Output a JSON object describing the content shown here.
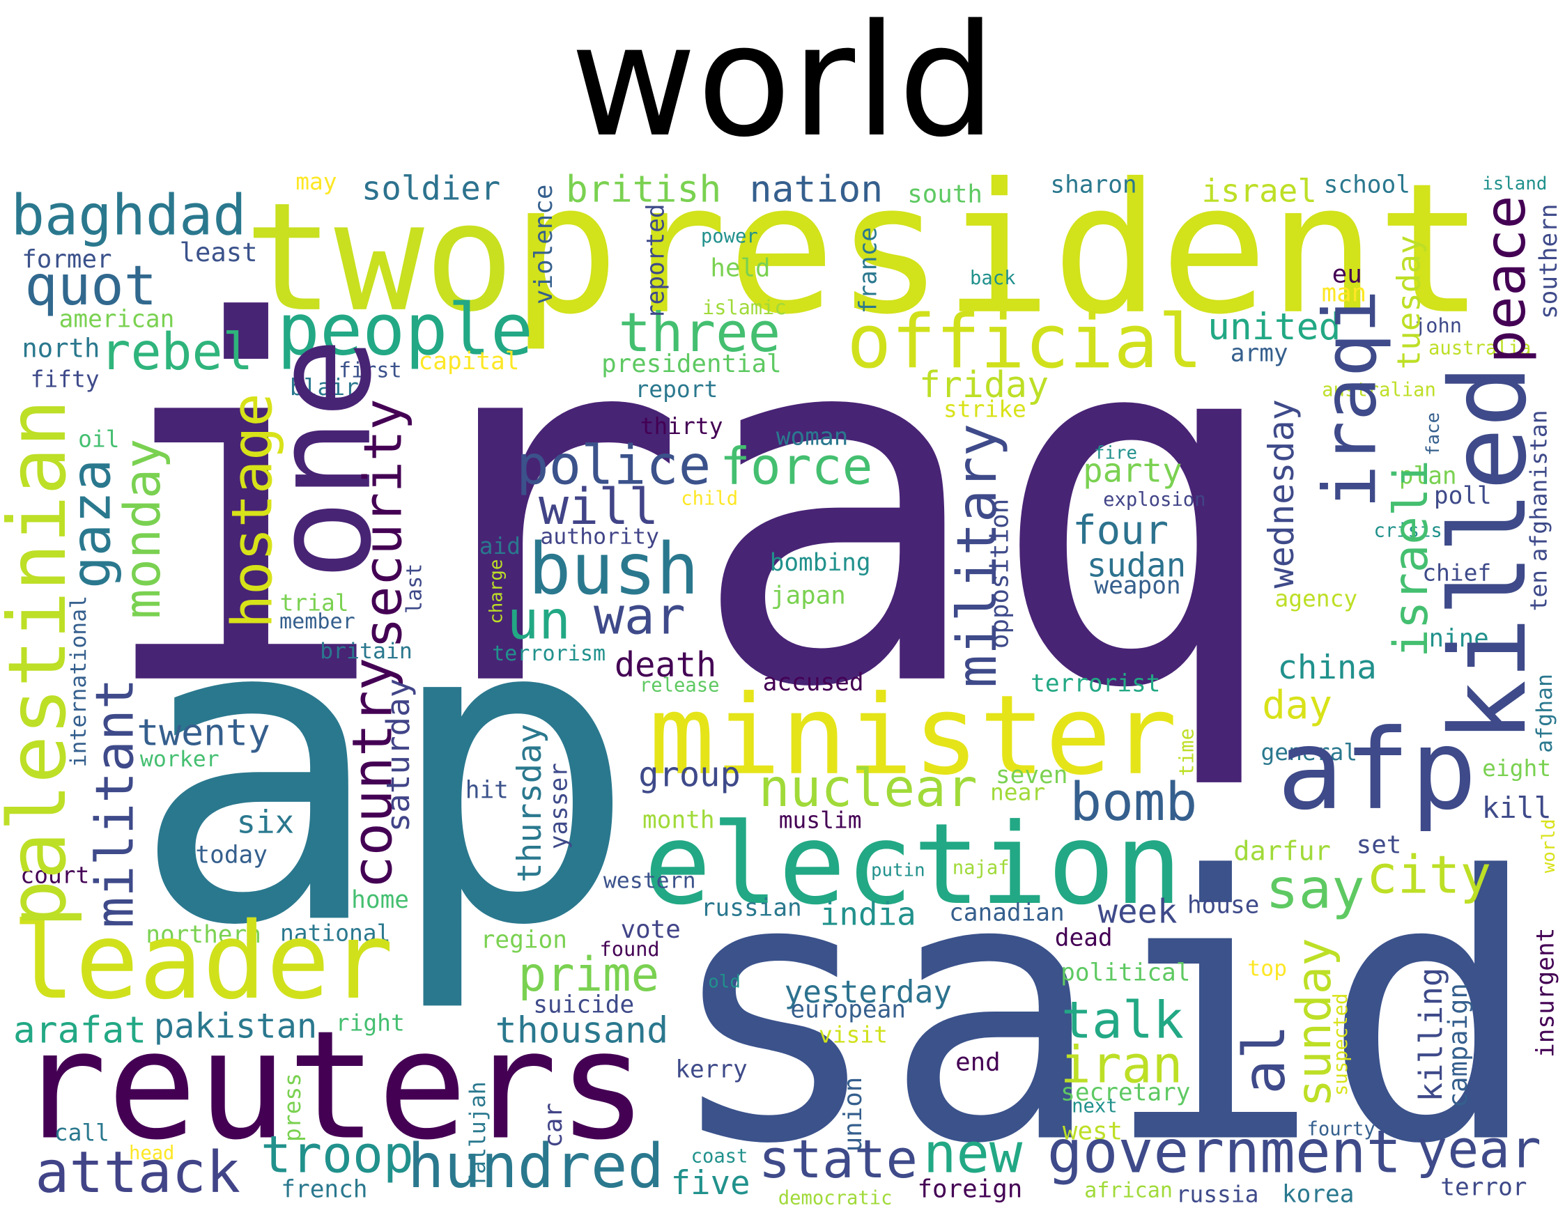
{
  "title": "world",
  "words": [
    "iraq",
    "ap",
    "said",
    "two",
    "president",
    "reuters",
    "election",
    "minister",
    "official",
    "people",
    "baghdad",
    "quot",
    "rebel",
    "least",
    "former",
    "american",
    "north",
    "fifty",
    "may",
    "soldier",
    "british",
    "nation",
    "south",
    "sharon",
    "israel",
    "school",
    "island",
    "three",
    "power",
    "held",
    "islamic",
    "presidential",
    "report",
    "capital",
    "first",
    "blair",
    "friday",
    "strike",
    "thirty",
    "woman",
    "police",
    "force",
    "will",
    "authority",
    "child",
    "bush",
    "aid",
    "un",
    "war",
    "death",
    "terrorism",
    "release",
    "accused",
    "bombing",
    "japan",
    "twenty",
    "worker",
    "group",
    "nuclear",
    "six",
    "today",
    "hit",
    "month",
    "muslim",
    "putin",
    "najaf",
    "court",
    "home",
    "northern",
    "national",
    "western",
    "russian",
    "india",
    "canadian",
    "week",
    "house",
    "vote",
    "found",
    "region",
    "dead",
    "prime",
    "yesterday",
    "political",
    "top",
    "old",
    "european",
    "arafat",
    "pakistan",
    "right",
    "suicide",
    "thousand",
    "visit",
    "talk",
    "iran",
    "secretary",
    "next",
    "west",
    "kerry",
    "end",
    "troop",
    "hundred",
    "attack",
    "call",
    "head",
    "french",
    "five",
    "state",
    "coast",
    "democratic",
    "new",
    "foreign",
    "government",
    "african",
    "russia",
    "korea",
    "year",
    "terror",
    "fourty",
    "leader",
    "say",
    "city",
    "darfur",
    "set",
    "kill",
    "eight",
    "general",
    "day",
    "china",
    "nine",
    "agency",
    "chief",
    "crisis",
    "poll",
    "plan",
    "fire",
    "explosion",
    "party",
    "four",
    "sudan",
    "weapon",
    "bomb",
    "afp",
    "seven",
    "near",
    "terrorist",
    "united",
    "army",
    "john",
    "australia",
    "australian",
    "eu",
    "man",
    "back",
    "oil",
    "trial",
    "member",
    "britain",
    "palestinian",
    "one",
    "hostage",
    "gaza",
    "monday",
    "militant",
    "international",
    "country",
    "security",
    "saturday",
    "last",
    "charge",
    "violence",
    "reported",
    "france",
    "military",
    "opposition",
    "thursday",
    "yasser",
    "press",
    "fallujah",
    "car",
    "union",
    "iraqi",
    "killed",
    "peace",
    "tuesday",
    "southern",
    "wednesday",
    "israeli",
    "sunday",
    "al",
    "killing",
    "campaign",
    "suspected",
    "insurgent",
    "afghan",
    "world",
    "afghanistan",
    "ten",
    "face",
    "time"
  ]
}
